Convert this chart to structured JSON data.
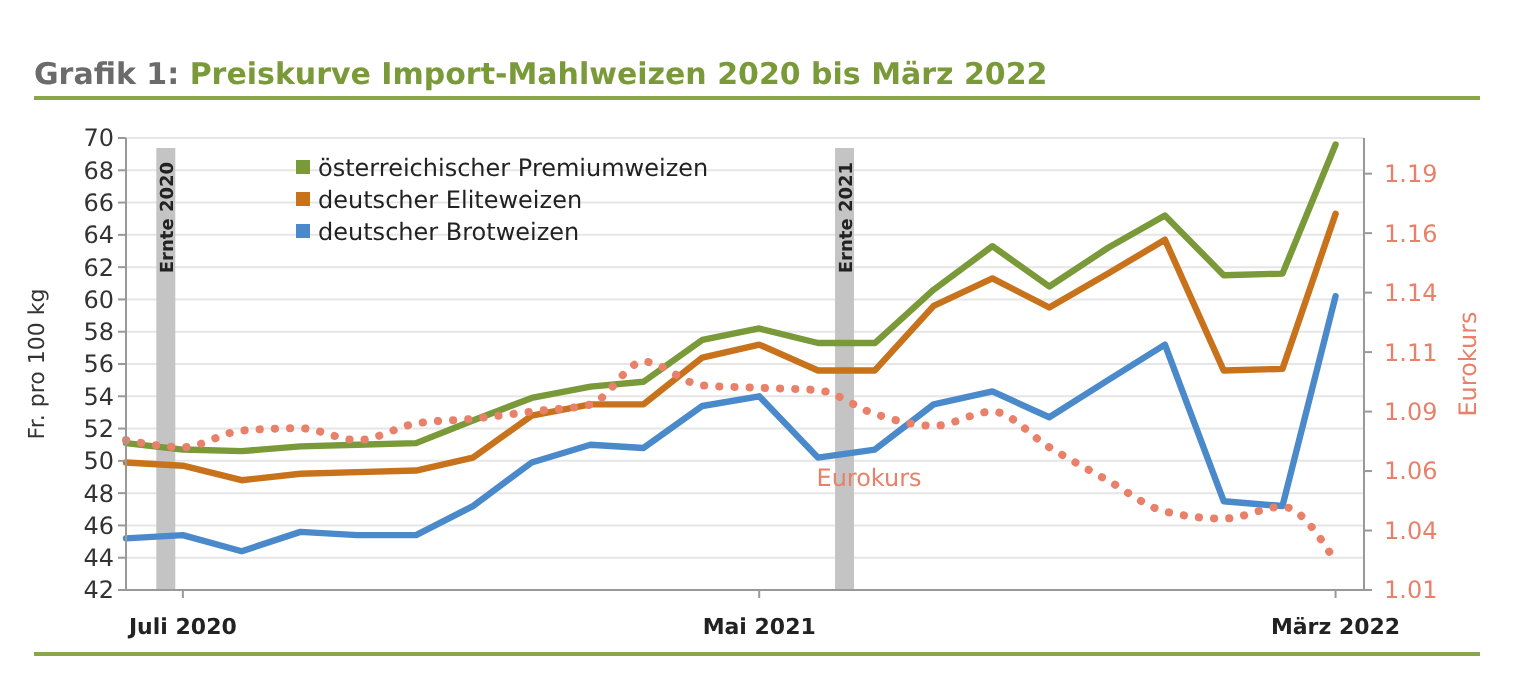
{
  "chart_data": {
    "type": "line",
    "title": "Grafik 1: Preiskurve Import-Mahlweizen 2020 bis März 2022",
    "ylabel": "Fr. pro 100 kg",
    "y2label": "Eurokurs",
    "x": [
      "2020-06",
      "2020-07",
      "2020-08",
      "2020-09",
      "2020-10",
      "2020-11",
      "2020-12",
      "2021-01",
      "2021-02",
      "2021-03",
      "2021-04",
      "2021-05",
      "2021-06",
      "2021-07",
      "2021-08",
      "2021-09",
      "2021-10",
      "2021-11",
      "2021-12",
      "2022-01",
      "2022-02",
      "2022-03"
    ],
    "xlim": [
      "2020-06-01",
      "2022-03-16"
    ],
    "xticks": [
      {
        "value": "2020-07",
        "label": "Juli 2020"
      },
      {
        "value": "2021-05",
        "label": "Mai 2021"
      },
      {
        "value": "2022-03",
        "label": "März 2022"
      }
    ],
    "ylim": [
      42,
      70
    ],
    "yticks": [
      42,
      44,
      46,
      48,
      50,
      52,
      54,
      56,
      58,
      60,
      62,
      64,
      66,
      68,
      70
    ],
    "y2lim": [
      1.01,
      1.2
    ],
    "y2ticks": [
      {
        "value": 1.01,
        "label": "1.01"
      },
      {
        "value": 1.035,
        "label": "1.04"
      },
      {
        "value": 1.06,
        "label": "1.06"
      },
      {
        "value": 1.085,
        "label": "1.09"
      },
      {
        "value": 1.11,
        "label": "1.11"
      },
      {
        "value": 1.135,
        "label": "1.14"
      },
      {
        "value": 1.16,
        "label": "1.16"
      },
      {
        "value": 1.185,
        "label": "1.19"
      }
    ],
    "grid": "y",
    "legend": "top left",
    "marker": "none",
    "bands": [
      {
        "axis": "x",
        "from": "2020-06-17",
        "to": "2020-06-27",
        "label": "Ernte 2020",
        "color": "#c4c4c4"
      },
      {
        "axis": "x",
        "from": "2021-06-10",
        "to": "2021-06-20",
        "label": "Ernte 2021",
        "color": "#c4c4c4"
      }
    ],
    "series": [
      {
        "name": "österreichischer Premiumweizen",
        "color": "#7a9a3a",
        "values": [
          51.1,
          50.7,
          50.6,
          50.9,
          51.0,
          51.1,
          52.5,
          53.9,
          54.6,
          54.9,
          57.5,
          58.2,
          57.3,
          57.3,
          60.6,
          63.3,
          60.8,
          63.2,
          65.2,
          61.5,
          61.6,
          69.6
        ]
      },
      {
        "name": "deutscher Eliteweizen",
        "color": "#c8731c",
        "values": [
          49.9,
          49.7,
          48.8,
          49.2,
          49.3,
          49.4,
          50.2,
          52.8,
          53.5,
          53.5,
          56.4,
          57.2,
          55.6,
          55.6,
          59.6,
          61.3,
          59.5,
          61.6,
          63.7,
          55.6,
          55.7,
          65.3
        ]
      },
      {
        "name": "deutscher Brotweizen",
        "color": "#4a8acb",
        "values": [
          45.2,
          45.4,
          44.4,
          45.6,
          45.4,
          45.4,
          47.2,
          49.9,
          51.0,
          50.8,
          53.4,
          54.0,
          50.2,
          50.7,
          53.5,
          54.3,
          52.7,
          55.0,
          57.2,
          47.5,
          47.2,
          60.2
        ]
      },
      {
        "name": "Eurokurs",
        "color": "#e8806a",
        "axis": "y2",
        "line_style": "dotted",
        "values": [
          1.073,
          1.07,
          1.077,
          1.078,
          1.073,
          1.08,
          1.082,
          1.085,
          1.088,
          1.106,
          1.096,
          1.095,
          1.094,
          1.084,
          1.079,
          1.085,
          1.07,
          1.056,
          1.043,
          1.04,
          1.045,
          1.022
        ]
      }
    ]
  }
}
